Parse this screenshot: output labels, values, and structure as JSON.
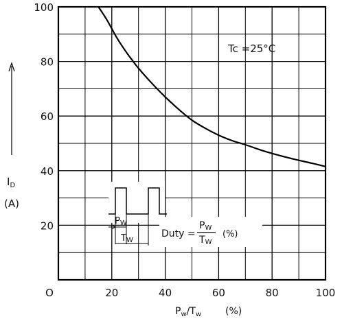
{
  "chart_data": {
    "type": "line",
    "xlabel": "Pw/Tw",
    "xlabel_main": "P",
    "xlabel_sub1": "w",
    "xlabel_slash": "/T",
    "xlabel_sub2": "w",
    "xunit": "(%)",
    "ylabel": "I",
    "ylabel_sub": "D",
    "yunit": "(A)",
    "xlim": [
      0,
      100
    ],
    "ylim": [
      0,
      100
    ],
    "grid": true,
    "x_ticks": [
      "O",
      "20",
      "40",
      "60",
      "80",
      "100"
    ],
    "y_ticks": [
      "20",
      "40",
      "60",
      "80",
      "100"
    ],
    "series": [
      {
        "x": [
          15,
          18,
          20,
          22,
          25,
          28,
          30,
          35,
          40,
          45,
          50,
          55,
          60,
          65,
          70,
          75,
          80,
          85,
          90,
          95,
          100
        ],
        "y": [
          100,
          95.5,
          92,
          88.5,
          84,
          80,
          77.5,
          72,
          67,
          62.5,
          58.5,
          55.5,
          53,
          51,
          49.5,
          47.8,
          46.3,
          45,
          43.8,
          42.7,
          41.5
        ]
      }
    ],
    "annotations": {
      "condition": "Tc =25°C",
      "duty_prefix": "Duty =",
      "duty_num_main": "P",
      "duty_num_sub": "W",
      "duty_den_main": "T",
      "duty_den_sub": "W",
      "duty_unit": "(%)",
      "pw_main": "P",
      "pw_sub": "W",
      "tw_main": "T",
      "tw_sub": "W"
    }
  }
}
